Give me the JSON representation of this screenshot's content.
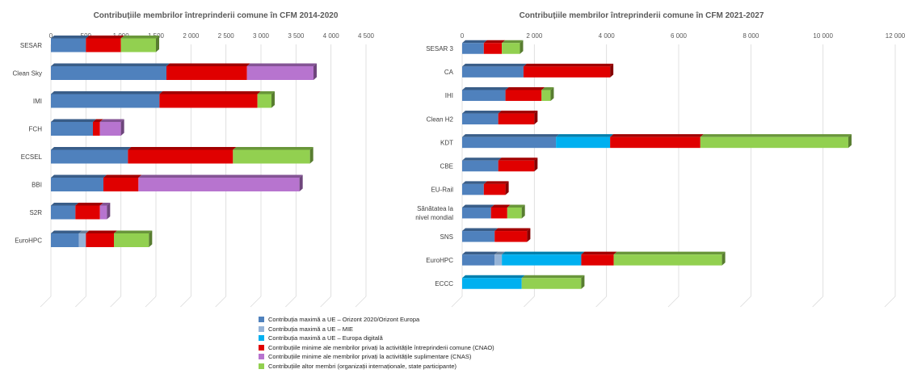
{
  "chart_data": [
    {
      "type": "bar",
      "stacked": true,
      "orientation": "horizontal",
      "title": "Contribuțiile membrilor întreprinderii comune în CFM 2014-2020",
      "categories": [
        "SESAR",
        "Clean Sky",
        "IMI",
        "FCH",
        "ECSEL",
        "BBI",
        "S2R",
        "EuroHPC"
      ],
      "xlim": [
        0,
        4500
      ],
      "xticks": [
        0,
        500,
        1000,
        1500,
        2000,
        2500,
        3000,
        3500,
        4000,
        4500
      ],
      "xtick_labels": [
        "0",
        "500",
        "1 000",
        "1 500",
        "2 000",
        "2 500",
        "3 000",
        "3 500",
        "4 000",
        "4 500"
      ],
      "grid": true,
      "series": [
        {
          "key": "eu_h2020",
          "values": [
            500,
            1650,
            1550,
            600,
            1100,
            750,
            350,
            400
          ]
        },
        {
          "key": "eu_mie",
          "values": [
            0,
            0,
            0,
            0,
            0,
            0,
            0,
            100
          ]
        },
        {
          "key": "eu_digital",
          "values": [
            0,
            0,
            0,
            0,
            0,
            0,
            0,
            0
          ]
        },
        {
          "key": "cnao",
          "values": [
            500,
            1150,
            1400,
            100,
            1500,
            500,
            350,
            400
          ]
        },
        {
          "key": "cnas",
          "values": [
            0,
            950,
            0,
            300,
            0,
            2300,
            100,
            0
          ]
        },
        {
          "key": "other",
          "values": [
            500,
            0,
            200,
            0,
            1100,
            0,
            0,
            500
          ]
        }
      ]
    },
    {
      "type": "bar",
      "stacked": true,
      "orientation": "horizontal",
      "title": "Contribuțiile membrilor întreprinderii comune în CFM 2021-2027",
      "categories": [
        "SESAR 3",
        "CA",
        "IHI",
        "Clean H2",
        "KDT",
        "CBE",
        "EU-Rail",
        "Sănătatea la nivel mondial",
        "SNS",
        "EuroHPC",
        "ECCC"
      ],
      "category_lines": [
        [
          "SESAR 3"
        ],
        [
          "CA"
        ],
        [
          "IHI"
        ],
        [
          "Clean H2"
        ],
        [
          "KDT"
        ],
        [
          "CBE"
        ],
        [
          "EU-Rail"
        ],
        [
          "Sănătatea la",
          "nivel mondial"
        ],
        [
          "SNS"
        ],
        [
          "EuroHPC"
        ],
        [
          "ECCC"
        ]
      ],
      "xlim": [
        0,
        12000
      ],
      "xticks": [
        0,
        2000,
        4000,
        6000,
        8000,
        10000,
        12000
      ],
      "xtick_labels": [
        "0",
        "2 000",
        "4 000",
        "6 000",
        "8 000",
        "10 000",
        "12 000"
      ],
      "grid": true,
      "series": [
        {
          "key": "eu_h2020",
          "values": [
            600,
            1700,
            1200,
            1000,
            2600,
            1000,
            600,
            800,
            900,
            900,
            0
          ]
        },
        {
          "key": "eu_mie",
          "values": [
            0,
            0,
            0,
            0,
            0,
            0,
            0,
            0,
            0,
            200,
            0
          ]
        },
        {
          "key": "eu_digital",
          "values": [
            0,
            0,
            0,
            0,
            1500,
            0,
            0,
            0,
            0,
            2200,
            1650
          ]
        },
        {
          "key": "cnao",
          "values": [
            500,
            2400,
            1000,
            1000,
            2500,
            1000,
            600,
            450,
            900,
            900,
            0
          ]
        },
        {
          "key": "cnas",
          "values": [
            0,
            0,
            0,
            0,
            0,
            0,
            0,
            0,
            0,
            0,
            0
          ]
        },
        {
          "key": "other",
          "values": [
            500,
            0,
            250,
            0,
            4100,
            0,
            0,
            400,
            0,
            3000,
            1650
          ]
        }
      ]
    }
  ],
  "legend": {
    "placement": "bottom-center",
    "items": [
      {
        "key": "eu_h2020",
        "label": "Contribuția maximă a UE – Orizont 2020/Orizont Europa",
        "color": "#4F81BD"
      },
      {
        "key": "eu_mie",
        "label": "Contribuția maximă a UE – MIE",
        "color": "#95B3D7"
      },
      {
        "key": "eu_digital",
        "label": "Contribuția maximă a UE – Europa digitală",
        "color": "#00B0F0"
      },
      {
        "key": "cnao",
        "label": "Contribuțiile minime ale membrilor privați la activitățile întreprinderii comune (CNAO)",
        "color": "#E00000"
      },
      {
        "key": "cnas",
        "label": "Contribuțiile minime ale membrilor privați la activitățile suplimentare (CNAS)",
        "color": "#B774CF"
      },
      {
        "key": "other",
        "label": "Contribuțiile altor membri (organizații internaționale, state participante)",
        "color": "#92D050"
      }
    ]
  }
}
